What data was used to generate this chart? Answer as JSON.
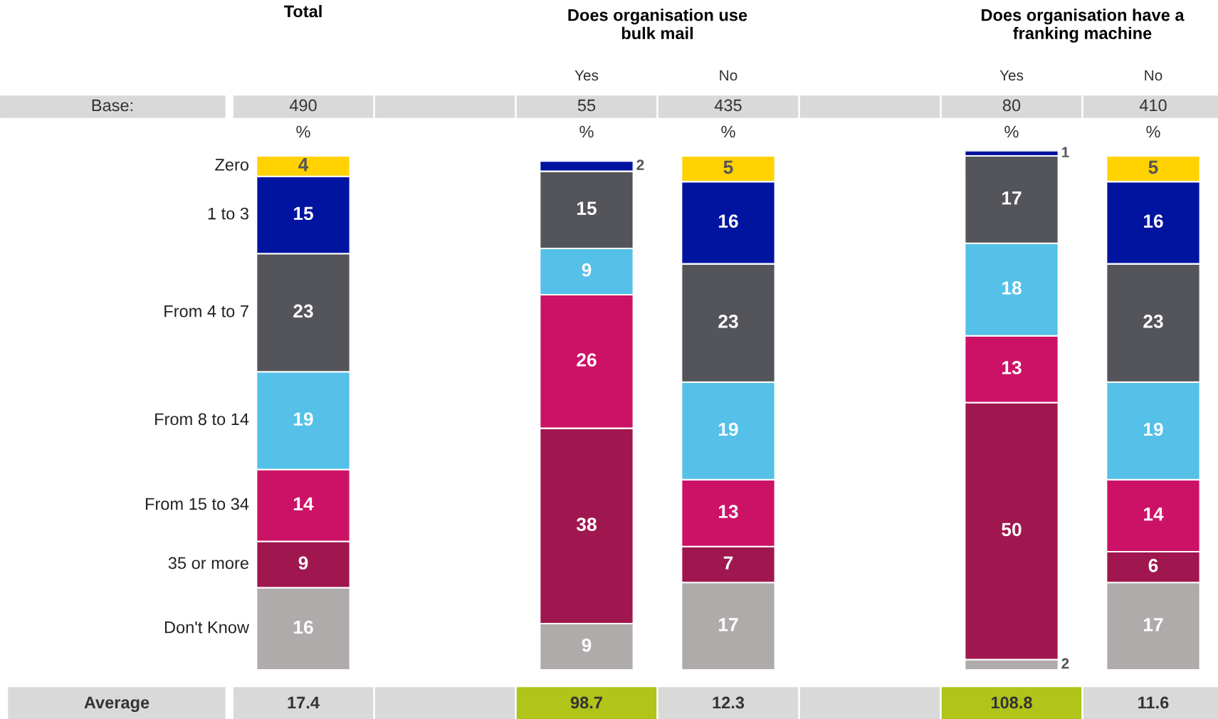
{
  "chart_data": {
    "type": "bar",
    "stacked": true,
    "categories": [
      null,
      null,
      "Yes",
      "No",
      null,
      "Yes",
      "No"
    ],
    "ylim": [
      0,
      101
    ],
    "series": [
      {
        "name": "Don't Know",
        "color": "#b0abab",
        "values": [
          16,
          null,
          9,
          17,
          null,
          2,
          17
        ]
      },
      {
        "name": "35 or more",
        "color": "#a0174f",
        "values": [
          9,
          null,
          38,
          7,
          null,
          50,
          6
        ]
      },
      {
        "name": "From 15 to 34",
        "color": "#cc1267",
        "values": [
          14,
          null,
          26,
          13,
          null,
          13,
          14
        ]
      },
      {
        "name": "From 8 to 14",
        "color": "#55c0e8",
        "values": [
          19,
          null,
          9,
          19,
          null,
          18,
          19
        ]
      },
      {
        "name": "From 4 to 7",
        "color": "#54555a",
        "values": [
          23,
          null,
          15,
          23,
          null,
          17,
          23
        ]
      },
      {
        "name": "1 to 3",
        "color": "#0014a0",
        "values": [
          15,
          null,
          2,
          16,
          null,
          1,
          16
        ]
      },
      {
        "name": "Zero",
        "color": "#ffd200",
        "values": [
          4,
          null,
          null,
          5,
          null,
          null,
          5
        ]
      }
    ],
    "data_labels": true,
    "annotations": [
      "Total",
      "Does organisation use\nbulk mail",
      "Does organisation have a\nfranking machine",
      "Base:",
      "490",
      "55",
      "435",
      "80",
      "410",
      "%",
      "%",
      "%",
      "%",
      "%",
      "Average",
      "17.4",
      "98.7",
      "12.3",
      "108.8",
      "11.6"
    ]
  }
}
